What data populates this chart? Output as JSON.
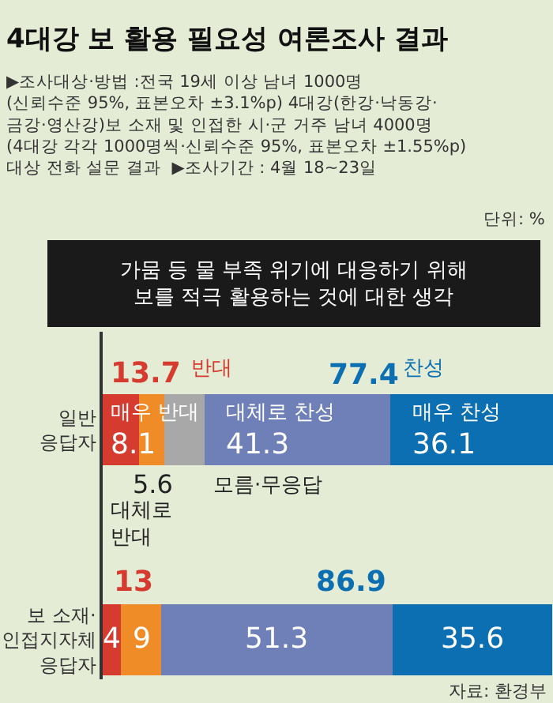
{
  "chart_data": {
    "type": "bar",
    "orientation": "horizontal",
    "stacked": true,
    "title": "4대강 보 활용 필요성 여론조사 결과",
    "subtitle": "▶조사대상·방법 :전국 19세 이상 남녀 1000명\n(신뢰수준 95%, 표본오차 ±3.1%p) 4대강(한강·낙동강·\n금강·영산강)보 소재 및 인접한 시·군 거주 남녀 4000명\n(4대강 각각 1000명씩·신뢰수준 95%, 표본오차 ±1.55%p)\n대상 전화 설문 결과  ▶조사기간 : 4월 18~23일",
    "xlabel": "가뭄 등 물 부족 위기에 대응하기 위해\n보를 적극 활용하는 것에 대한 생각",
    "categories": [
      "일반 응답자",
      "보 소재·인접지자체 응답자"
    ],
    "xlim": [
      0,
      100
    ],
    "tick_labels": "y",
    "grid": false,
    "legend": false,
    "series": [
      {
        "name": "매우 반대",
        "color": "#d63b2f",
        "values": [
          8.1,
          4
        ],
        "value_labels": [
          "8.1",
          "4"
        ]
      },
      {
        "name": "대체로 반대",
        "color": "#f08c28",
        "values": [
          5.6,
          9
        ],
        "value_labels": [
          "5.6",
          "9"
        ]
      },
      {
        "name": "모름·무응답",
        "color": "#a8a8a8",
        "values": [
          8.9,
          null
        ],
        "value_labels": [
          null,
          null
        ]
      },
      {
        "name": "대체로 찬성",
        "color": "#6f7fb8",
        "values": [
          41.3,
          51.3
        ],
        "value_labels": [
          "41.3",
          "51.3"
        ]
      },
      {
        "name": "매우 찬성",
        "color": "#0b6fb1",
        "values": [
          36.1,
          35.6
        ],
        "value_labels": [
          "36.1",
          "35.6"
        ]
      }
    ],
    "annotations": [
      "13.7",
      "반대",
      "77.4",
      "찬성",
      "13",
      "86.9",
      "단위: %",
      "자료: 환경부"
    ]
  }
}
